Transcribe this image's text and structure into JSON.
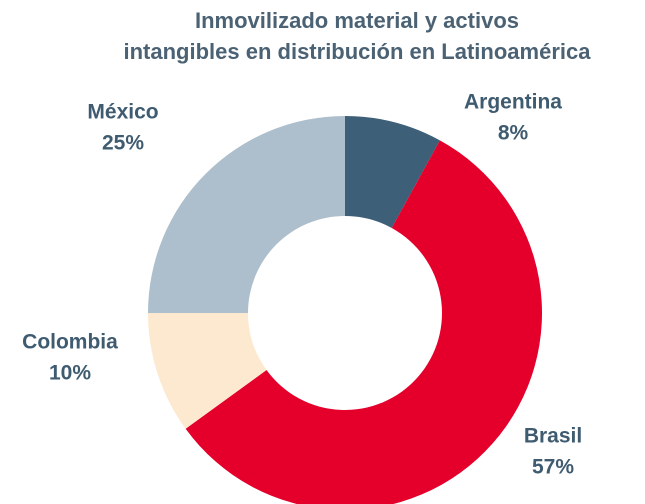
{
  "chart_data": {
    "type": "donut",
    "title": [
      "Inmovilizado material y activos",
      "intangibles en distribución en Latinoamérica"
    ],
    "categories": [
      "Argentina",
      "Brasil",
      "Colombia",
      "México"
    ],
    "values": [
      8,
      57,
      10,
      25
    ],
    "value_labels": [
      "8%",
      "57%",
      "10%",
      "25%"
    ],
    "colors": [
      "#3e5f78",
      "#e4002b",
      "#fde9cf",
      "#adbfcc"
    ]
  }
}
